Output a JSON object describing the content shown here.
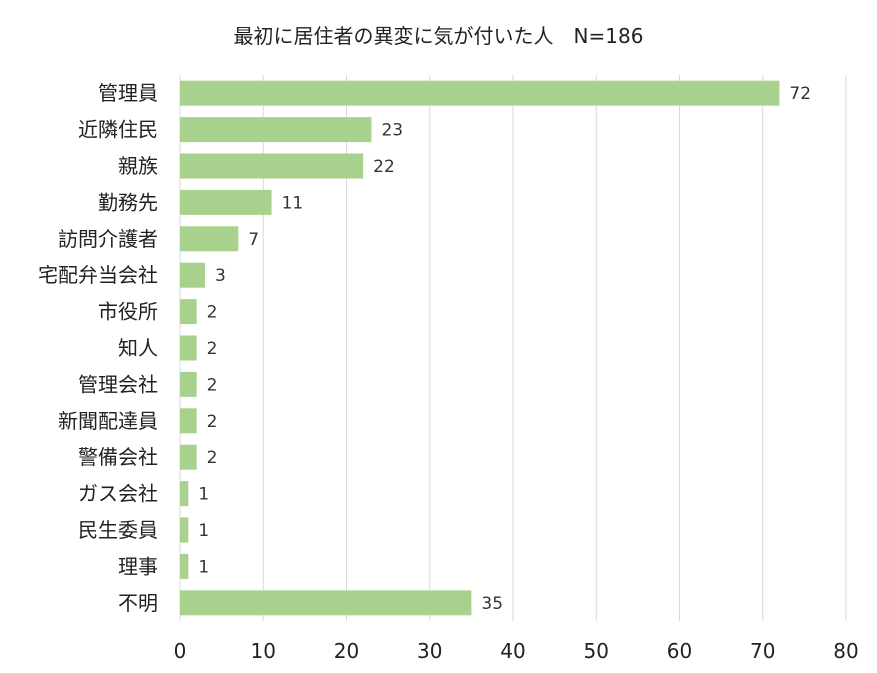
{
  "chart_data": {
    "type": "bar",
    "orientation": "horizontal",
    "title": "最初に居住者の異変に気が付いた人　N=186",
    "categories": [
      "管理員",
      "近隣住民",
      "親族",
      "勤務先",
      "訪問介護者",
      "宅配弁当会社",
      "市役所",
      "知人",
      "管理会社",
      "新聞配達員",
      "警備会社",
      "ガス会社",
      "民生委員",
      "理事",
      "不明"
    ],
    "values": [
      72,
      23,
      22,
      11,
      7,
      3,
      2,
      2,
      2,
      2,
      2,
      1,
      1,
      1,
      35
    ],
    "xlim": [
      0,
      80
    ],
    "xticks": [
      0,
      10,
      20,
      30,
      40,
      50,
      60,
      70,
      80
    ],
    "grid": "vertical",
    "legend": "none",
    "bar_color": "#a9d18e"
  }
}
